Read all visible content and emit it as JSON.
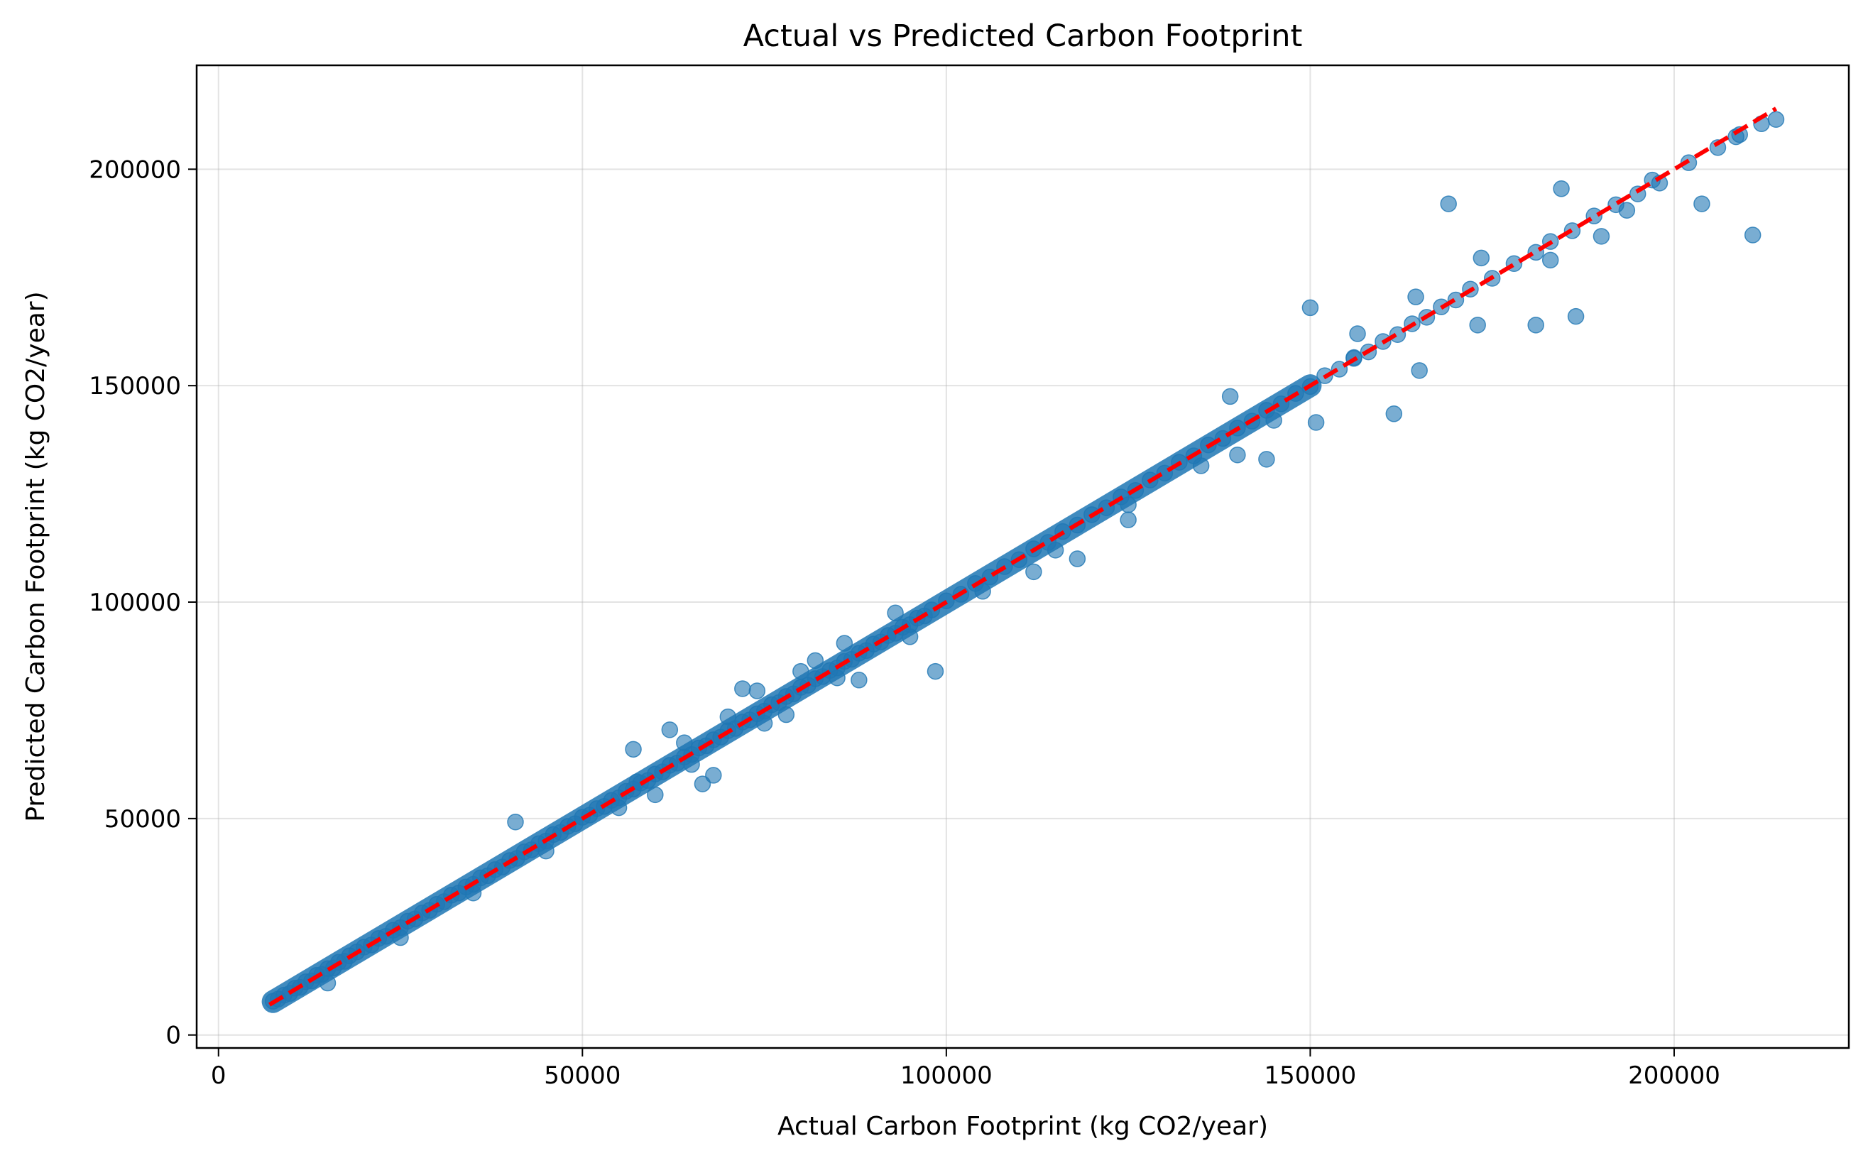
{
  "chart_data": {
    "type": "scatter",
    "title": "Actual vs Predicted Carbon Footprint",
    "xlabel": "Actual Carbon Footprint (kg CO2/year)",
    "ylabel": "Predicted Carbon Footprint (kg CO2/year)",
    "xlim": [
      -3000,
      224000
    ],
    "ylim": [
      -3000,
      224000
    ],
    "xticks": [
      0,
      50000,
      100000,
      150000,
      200000
    ],
    "xtick_labels": [
      "0",
      "50000",
      "100000",
      "150000",
      "200000"
    ],
    "yticks": [
      0,
      50000,
      100000,
      150000,
      200000
    ],
    "ytick_labels": [
      "0",
      "50000",
      "100000",
      "150000",
      "200000"
    ],
    "grid": true,
    "point_color": "#1f77b4",
    "point_alpha": 0.6,
    "reference_line": {
      "style": "dashed",
      "color": "#ff0000",
      "x": [
        7000,
        214000
      ],
      "y": [
        7000,
        214000
      ]
    },
    "series": [
      {
        "x": [
          7500,
          8200,
          9000,
          9800,
          10500,
          11200,
          12000,
          12800,
          13500,
          14200,
          15000,
          15800,
          16500,
          17300,
          18000,
          19000,
          20000,
          21000,
          22000,
          23000,
          24000,
          25000,
          26000,
          27000,
          28000,
          29000,
          30000,
          31000,
          32000,
          33000,
          34000,
          35000,
          36000,
          37000,
          38000,
          39000,
          40000,
          41000,
          42000,
          43000,
          44000,
          45000,
          46000,
          47000,
          48000,
          49000,
          50000,
          51000,
          52000,
          53000,
          54000,
          55000,
          56000,
          57000,
          58000,
          59000,
          60000,
          61000,
          62000,
          63000,
          64000,
          65000,
          66000,
          67000,
          68000,
          69000,
          70000,
          71000,
          72000,
          73000,
          74000,
          75000,
          76000,
          77000,
          78000,
          79000,
          80000,
          81000,
          82000,
          83000,
          84000,
          85000,
          86000,
          87000,
          88000,
          89000,
          90000,
          91000,
          92000,
          93000,
          94000,
          95000,
          96000,
          97000,
          98000,
          100000,
          102000,
          104000,
          106000,
          108000,
          110000,
          112000,
          114000,
          116000,
          118000,
          120000,
          122000,
          124000,
          126000,
          128000,
          130000,
          132000,
          134000,
          136000,
          138000,
          140000,
          142000,
          144000,
          146000,
          148000,
          150000,
          152000,
          154000,
          156000,
          158000,
          160000,
          162000,
          164000,
          166000,
          168000,
          170000,
          172000,
          175000,
          178000,
          181000,
          183000,
          186000,
          189000,
          192000,
          195000,
          198000,
          202000,
          206000,
          209000,
          212000,
          214000,
          15000,
          25000,
          35000,
          45000,
          55000,
          65000,
          75000,
          85000,
          95000,
          105000,
          115000,
          125000,
          135000,
          145000,
          57000,
          62000,
          68000,
          72000,
          78000,
          82000,
          88000,
          93000,
          60000,
          64000,
          70000,
          74000,
          80000,
          86000,
          40800,
          57500,
          66500,
          98500,
          118000,
          139000,
          144000,
          150000,
          150800,
          156000,
          161500,
          165000,
          169000,
          173000,
          181000,
          186500,
          203800,
          210800,
          184500,
          173500,
          183000,
          164500,
          140000,
          125000,
          112000,
          156500,
          197000,
          190000,
          193500,
          208500
        ],
        "y": [
          7800,
          8300,
          9200,
          9600,
          10800,
          11000,
          12300,
          12500,
          13800,
          14000,
          15300,
          15500,
          16800,
          17000,
          18300,
          19200,
          20300,
          20800,
          22300,
          22800,
          24200,
          24800,
          26300,
          26800,
          28200,
          28800,
          30200,
          30800,
          32300,
          32800,
          34200,
          34800,
          36300,
          36800,
          38200,
          38800,
          40300,
          40800,
          42300,
          42800,
          44200,
          44800,
          46300,
          46800,
          48200,
          48800,
          50300,
          50800,
          52300,
          52800,
          54200,
          54800,
          56300,
          56800,
          58200,
          58800,
          60300,
          60800,
          62300,
          62800,
          64200,
          64800,
          66300,
          66800,
          68200,
          68800,
          70300,
          70800,
          72300,
          72800,
          74200,
          74800,
          76300,
          76800,
          78200,
          78800,
          80300,
          80800,
          82300,
          82800,
          84200,
          84800,
          86300,
          86800,
          88200,
          88800,
          90300,
          90800,
          92300,
          92800,
          94200,
          94800,
          96300,
          96800,
          98200,
          100300,
          101800,
          104300,
          105800,
          108200,
          109800,
          112300,
          113800,
          116300,
          117800,
          120200,
          121800,
          124300,
          125800,
          128200,
          129800,
          132300,
          133800,
          136300,
          137800,
          140200,
          141800,
          144300,
          145800,
          148200,
          149800,
          152300,
          153800,
          156300,
          157800,
          160200,
          161800,
          164300,
          165800,
          168200,
          169800,
          172300,
          174800,
          178200,
          180800,
          183300,
          185800,
          189200,
          191800,
          194300,
          196800,
          201500,
          205000,
          208000,
          210500,
          211500,
          12000,
          22500,
          32800,
          42500,
          52500,
          62500,
          72000,
          82500,
          92000,
          102500,
          112000,
          122500,
          131500,
          142000,
          66000,
          70500,
          60000,
          80000,
          74000,
          86500,
          82000,
          97500,
          55500,
          67500,
          73500,
          79500,
          84000,
          90500,
          49200,
          58500,
          58000,
          84000,
          110000,
          147500,
          133000,
          168000,
          141500,
          156500,
          143500,
          153500,
          192000,
          164000,
          164000,
          166000,
          192000,
          184800,
          195500,
          179500,
          179000,
          170500,
          134000,
          119000,
          107000,
          162000,
          197500,
          184500,
          190500,
          207500
        ]
      }
    ]
  }
}
